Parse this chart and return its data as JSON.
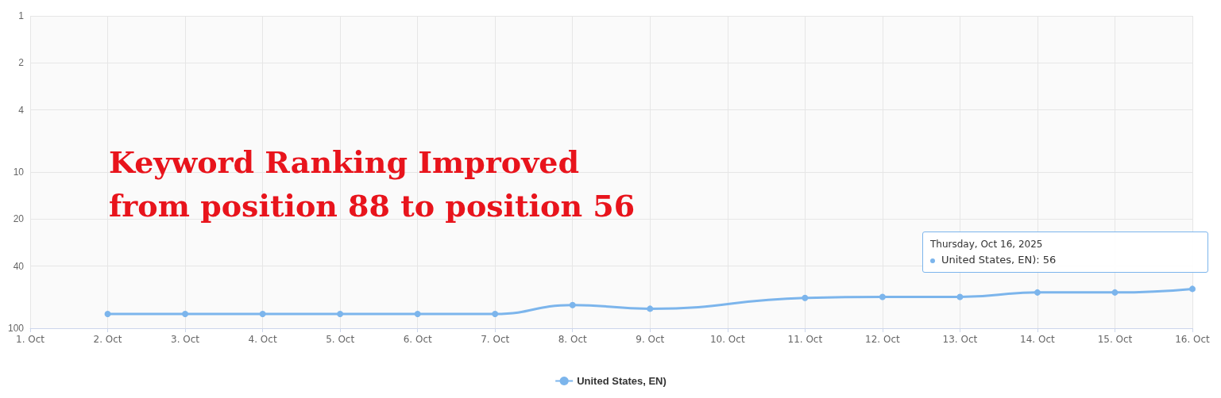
{
  "chart_data": {
    "type": "line",
    "categories": [
      "1. Oct",
      "2. Oct",
      "3. Oct",
      "4. Oct",
      "5. Oct",
      "6. Oct",
      "7. Oct",
      "8. Oct",
      "9. Oct",
      "10. Oct",
      "11. Oct",
      "12. Oct",
      "13. Oct",
      "14. Oct",
      "15. Oct",
      "16. Oct"
    ],
    "series": [
      {
        "name": "United States, EN)",
        "color": "#7cb5ec",
        "values": [
          null,
          81,
          81,
          81,
          81,
          81,
          81,
          71,
          75,
          null,
          64,
          63,
          63,
          59,
          59,
          56
        ]
      }
    ],
    "ylim": [
      100,
      1
    ],
    "yticks": [
      1,
      2,
      4,
      10,
      20,
      40,
      100
    ],
    "log": "y",
    "grid": true,
    "marker": "circle",
    "line_style": "solid",
    "legend": "bottom",
    "annotations": [
      "Keyword Ranking Improved",
      "from position 88 to position 56",
      "Thursday, Oct 16, 2025",
      "United States, EN): 56"
    ]
  }
}
